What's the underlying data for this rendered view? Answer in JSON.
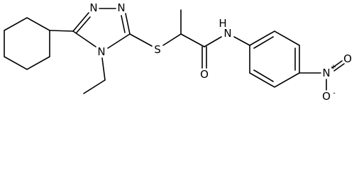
{
  "atoms": [
    "N",
    "N",
    "N",
    "S",
    "O",
    "H",
    "N",
    "N",
    "+",
    "O",
    "O",
    "-"
  ]
}
